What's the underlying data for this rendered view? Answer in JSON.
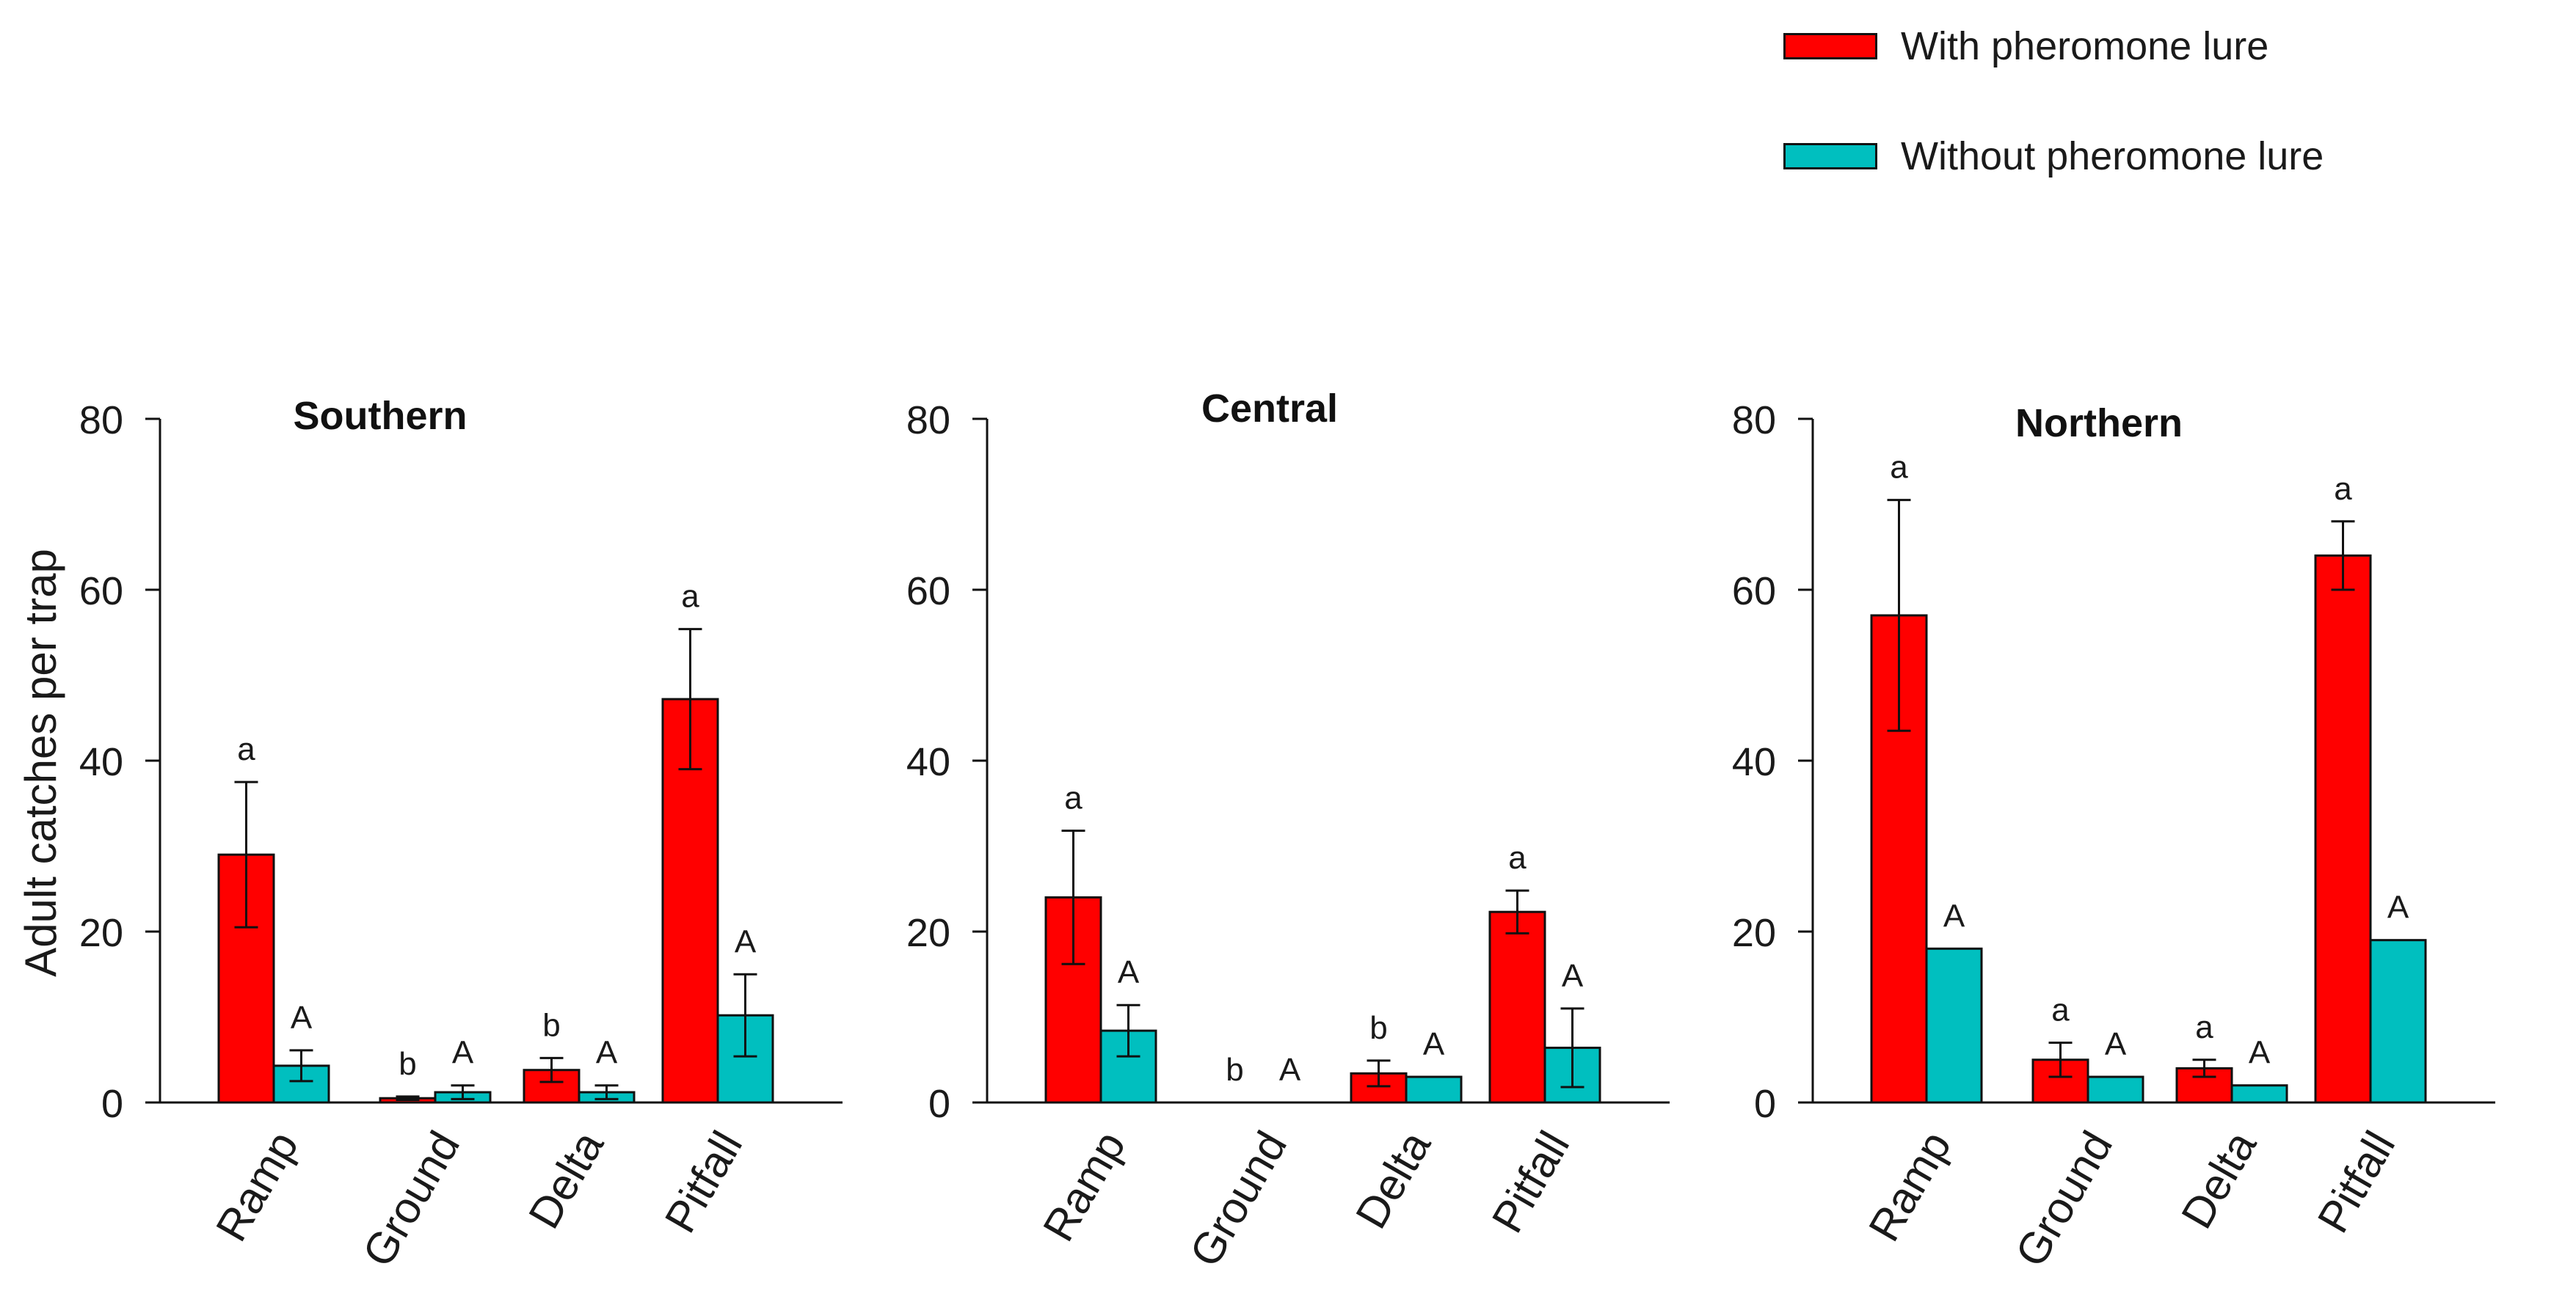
{
  "legend": {
    "with_label": "With pheromone lure",
    "without_label": "Without pheromone lure",
    "with_color": "#ff0000",
    "without_color": "#00bfbf"
  },
  "y_axis_label": "Adult catches per trap",
  "chart_data": [
    {
      "type": "bar",
      "title": "Southern",
      "categories": [
        "Ramp",
        "Ground",
        "Delta",
        "Pitfall"
      ],
      "ylabel": "Adult catches per trap",
      "ylim": [
        0,
        80
      ],
      "yticks": [
        0,
        20,
        40,
        60,
        80
      ],
      "series": [
        {
          "name": "With pheromone lure",
          "values": [
            29,
            0.5,
            3.8,
            47.2
          ],
          "errors": [
            8.5,
            0.2,
            1.4,
            8.2
          ],
          "letters": [
            "a",
            "b",
            "b",
            "a"
          ]
        },
        {
          "name": "Without pheromone lure",
          "values": [
            4.3,
            1.2,
            1.2,
            10.2
          ],
          "errors": [
            1.8,
            0.8,
            0.8,
            4.8
          ],
          "letters": [
            "A",
            "A",
            "A",
            "A"
          ]
        }
      ]
    },
    {
      "type": "bar",
      "title": "Central",
      "categories": [
        "Ramp",
        "Ground",
        "Delta",
        "Pitfall"
      ],
      "ylabel": "",
      "ylim": [
        0,
        80
      ],
      "yticks": [
        0,
        20,
        40,
        60,
        80
      ],
      "series": [
        {
          "name": "With pheromone lure",
          "values": [
            24,
            0,
            3.4,
            22.3
          ],
          "errors": [
            7.8,
            0,
            1.5,
            2.5
          ],
          "letters": [
            "a",
            "b",
            "b",
            "a"
          ]
        },
        {
          "name": "Without pheromone lure",
          "values": [
            8.4,
            0,
            3,
            6.4
          ],
          "errors": [
            3,
            0,
            0,
            4.6
          ],
          "letters": [
            "A",
            "A",
            "A",
            "A"
          ]
        }
      ]
    },
    {
      "type": "bar",
      "title": "Northern",
      "categories": [
        "Ramp",
        "Ground",
        "Delta",
        "Pitfall"
      ],
      "ylabel": "",
      "ylim": [
        0,
        80
      ],
      "yticks": [
        0,
        20,
        40,
        60,
        80
      ],
      "series": [
        {
          "name": "With pheromone lure",
          "values": [
            57,
            5,
            4,
            64
          ],
          "errors": [
            13.5,
            2,
            1,
            4
          ],
          "letters": [
            "a",
            "a",
            "a",
            "a"
          ]
        },
        {
          "name": "Without pheromone lure",
          "values": [
            18,
            3,
            2,
            19
          ],
          "errors": [
            0,
            0,
            0,
            0
          ],
          "letters": [
            "A",
            "A",
            "A",
            "A"
          ]
        }
      ]
    }
  ]
}
